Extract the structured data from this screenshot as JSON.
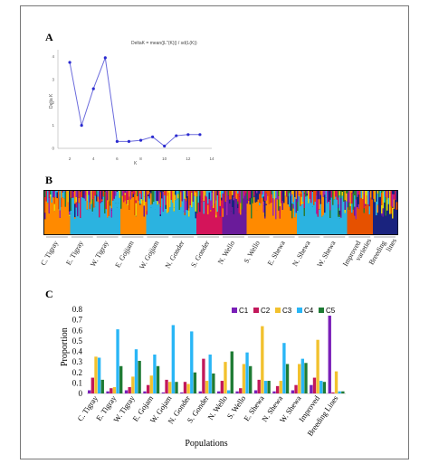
{
  "panel_labels": {
    "a": "A",
    "b": "B",
    "c": "C"
  },
  "chart_data": [
    {
      "panel": "A",
      "type": "line",
      "title": "DeltaK = mean(|L''(K)|) / sd(L(K))",
      "xlabel": "K",
      "ylabel": "Delta K",
      "x_ticks": [
        "2",
        "4",
        "6",
        "8",
        "10",
        "12",
        "14"
      ],
      "y_ticks": [
        "0",
        "1",
        "2",
        "3",
        "4"
      ],
      "xlim": [
        1,
        14
      ],
      "ylim": [
        0,
        4.3
      ],
      "x": [
        2,
        3,
        4,
        5,
        6,
        7,
        8,
        9,
        10,
        11,
        12,
        13
      ],
      "y": [
        3.75,
        1.0,
        2.6,
        3.95,
        0.3,
        0.3,
        0.35,
        0.5,
        0.1,
        0.55,
        0.6,
        0.6
      ],
      "line_color": "#6b6bdc"
    },
    {
      "panel": "B",
      "type": "bar",
      "group_labels": [
        "C. Tigray",
        "E. Tigray",
        "W. Tigray",
        "E. Gojjam",
        "W. Gojjam",
        "N. Gonder",
        "S. Gonder",
        "N. Wello",
        "S. Wello",
        "E. Shewa",
        "N. Shewa",
        "W. Shewa",
        "Improved varieties",
        "Breeding lines"
      ],
      "colors": [
        "#1a237e",
        "#e65100",
        "#ff8a00",
        "#9c27b0",
        "#2e7d32",
        "#2bb3e0",
        "#d4145a",
        "#e8d20c",
        "#6a1b9a"
      ]
    },
    {
      "panel": "C",
      "type": "bar",
      "xlabel": "Populations",
      "ylabel": "Proportion",
      "ylim": [
        0,
        0.8
      ],
      "y_ticks": [
        "0",
        "0.1",
        "0.2",
        "0.3",
        "0.4",
        "0.5",
        "0.6",
        "0.7",
        "0.8"
      ],
      "legend_position": "top-right",
      "categories": [
        "C. Tigray",
        "E. Tigray",
        "W. Tigray",
        "E. Gojam",
        "W. Gojam",
        "N. Gonder",
        "S. Gonder",
        "N. Wello",
        "S. Wello",
        "E. Shewa",
        "N. Shewa",
        "W. Shewa",
        "Improved",
        "Breeding Lines"
      ],
      "series": [
        {
          "name": "C1",
          "color": "#7a1fb8",
          "values": [
            0.03,
            0.02,
            0.03,
            0.02,
            0.01,
            0.01,
            0.02,
            0.02,
            0.02,
            0.03,
            0.02,
            0.03,
            0.08,
            0.74
          ]
        },
        {
          "name": "C2",
          "color": "#c2185b",
          "values": [
            0.15,
            0.05,
            0.06,
            0.08,
            0.13,
            0.11,
            0.33,
            0.12,
            0.05,
            0.13,
            0.07,
            0.08,
            0.15,
            0.01
          ]
        },
        {
          "name": "C3",
          "color": "#f2c12e",
          "values": [
            0.35,
            0.06,
            0.16,
            0.17,
            0.11,
            0.09,
            0.12,
            0.3,
            0.28,
            0.64,
            0.12,
            0.28,
            0.51,
            0.21
          ]
        },
        {
          "name": "C4",
          "color": "#29b6f6",
          "values": [
            0.34,
            0.61,
            0.42,
            0.37,
            0.65,
            0.59,
            0.37,
            0.03,
            0.39,
            0.12,
            0.48,
            0.33,
            0.12,
            0.02
          ]
        },
        {
          "name": "C5",
          "color": "#1e7b34",
          "values": [
            0.13,
            0.26,
            0.31,
            0.26,
            0.11,
            0.2,
            0.19,
            0.4,
            0.26,
            0.12,
            0.28,
            0.29,
            0.11,
            0.02
          ]
        }
      ]
    }
  ]
}
